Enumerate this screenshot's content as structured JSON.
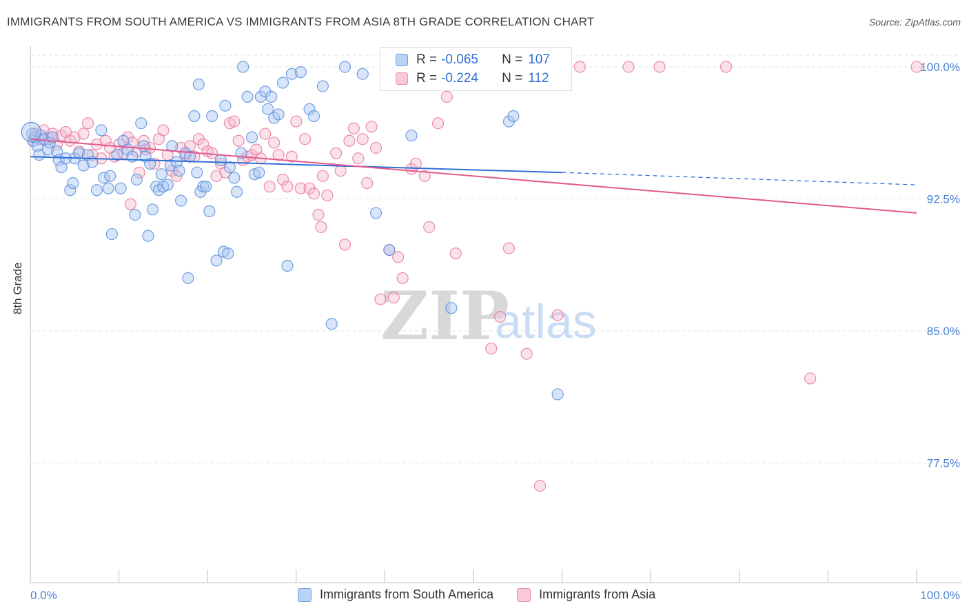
{
  "title": "IMMIGRANTS FROM SOUTH AMERICA VS IMMIGRANTS FROM ASIA 8TH GRADE CORRELATION CHART",
  "source": "Source: ZipAtlas.com",
  "watermark": {
    "zip": "ZIP",
    "atlas": "atlas"
  },
  "colors": {
    "blue": "#5b8fd9",
    "blue_fill": "#a9c6f2",
    "blue_line": "#2f6fd6",
    "pink": "#e87aa0",
    "pink_fill": "#f5bcd0",
    "pink_line": "#e05a8a",
    "axis_text": "#4a7fd4",
    "grid": "#e2e2e2"
  },
  "legend": {
    "south_america": {
      "r_label": "R =",
      "r_value": "-0.065",
      "n_label": "N =",
      "n_value": "107"
    },
    "asia": {
      "r_label": "R =",
      "r_value": "-0.224",
      "n_label": "N =",
      "n_value": "112"
    }
  },
  "chart_data": {
    "type": "scatter",
    "title": "IMMIGRANTS FROM SOUTH AMERICA VS IMMIGRANTS FROM ASIA 8TH GRADE CORRELATION CHART",
    "xlabel": "",
    "ylabel": "8th Grade",
    "xlim": [
      0,
      100
    ],
    "ylim": [
      70.0,
      101.0
    ],
    "x_tick_labels": [
      "0.0%",
      "100.0%"
    ],
    "y_ticks": [
      77.5,
      85.0,
      92.5,
      100.0
    ],
    "y_tick_labels": [
      "77.5%",
      "85.0%",
      "92.5%",
      "100.0%"
    ],
    "grid": true,
    "legend_position": "top-center",
    "series": [
      {
        "name": "Immigrants from South America",
        "color": "#5b8fd9",
        "trend": {
          "x0": 0,
          "y0": 94.9,
          "x1": 60,
          "y1": 94.0,
          "dashed_to_x": 100,
          "dashed_to_y": 93.3
        },
        "points": [
          [
            0.2,
            96.2
          ],
          [
            0.3,
            95.8
          ],
          [
            0.5,
            96.0
          ],
          [
            0.8,
            95.5
          ],
          [
            1.0,
            95.0
          ],
          [
            1.2,
            96.1
          ],
          [
            1.5,
            95.9
          ],
          [
            2.0,
            95.3
          ],
          [
            2.2,
            95.7
          ],
          [
            2.5,
            96.0
          ],
          [
            3.0,
            95.2
          ],
          [
            3.2,
            94.7
          ],
          [
            3.5,
            94.3
          ],
          [
            4.0,
            94.8
          ],
          [
            4.5,
            93.0
          ],
          [
            4.8,
            93.4
          ],
          [
            5.0,
            94.8
          ],
          [
            5.5,
            95.1
          ],
          [
            6.0,
            94.4
          ],
          [
            6.5,
            95.0
          ],
          [
            7.0,
            94.6
          ],
          [
            7.5,
            93.0
          ],
          [
            8.0,
            96.4
          ],
          [
            8.3,
            93.7
          ],
          [
            8.8,
            93.1
          ],
          [
            9.0,
            93.8
          ],
          [
            9.2,
            90.5
          ],
          [
            9.8,
            95.0
          ],
          [
            10.2,
            93.1
          ],
          [
            10.5,
            95.8
          ],
          [
            11.0,
            95.3
          ],
          [
            11.5,
            94.9
          ],
          [
            11.8,
            91.6
          ],
          [
            12.0,
            93.6
          ],
          [
            12.5,
            96.8
          ],
          [
            12.8,
            95.5
          ],
          [
            13.0,
            94.9
          ],
          [
            13.3,
            90.4
          ],
          [
            13.5,
            94.5
          ],
          [
            13.8,
            91.9
          ],
          [
            14.2,
            93.2
          ],
          [
            14.5,
            93.0
          ],
          [
            14.8,
            93.9
          ],
          [
            15.0,
            93.2
          ],
          [
            15.5,
            93.3
          ],
          [
            15.8,
            94.4
          ],
          [
            16.0,
            95.5
          ],
          [
            16.5,
            94.6
          ],
          [
            16.8,
            94.1
          ],
          [
            17.0,
            92.4
          ],
          [
            17.5,
            95.1
          ],
          [
            17.8,
            88.0
          ],
          [
            18.0,
            94.9
          ],
          [
            18.5,
            97.2
          ],
          [
            18.8,
            94.0
          ],
          [
            19.0,
            99.0
          ],
          [
            19.2,
            92.9
          ],
          [
            19.5,
            93.2
          ],
          [
            19.8,
            93.2
          ],
          [
            20.2,
            91.8
          ],
          [
            20.5,
            97.2
          ],
          [
            21.0,
            89.0
          ],
          [
            21.5,
            94.7
          ],
          [
            21.8,
            89.5
          ],
          [
            22.0,
            97.8
          ],
          [
            22.3,
            89.4
          ],
          [
            22.5,
            94.3
          ],
          [
            23.0,
            93.7
          ],
          [
            23.3,
            92.9
          ],
          [
            23.8,
            95.1
          ],
          [
            24.0,
            100.0
          ],
          [
            24.5,
            98.3
          ],
          [
            25.0,
            96.0
          ],
          [
            25.3,
            93.9
          ],
          [
            25.8,
            94.0
          ],
          [
            26.0,
            98.3
          ],
          [
            26.5,
            98.6
          ],
          [
            26.8,
            97.6
          ],
          [
            27.2,
            98.3
          ],
          [
            27.5,
            97.1
          ],
          [
            28.0,
            97.3
          ],
          [
            28.5,
            99.1
          ],
          [
            29.0,
            88.7
          ],
          [
            29.5,
            99.6
          ],
          [
            30.5,
            99.7
          ],
          [
            31.5,
            97.6
          ],
          [
            32.0,
            97.2
          ],
          [
            33.0,
            98.9
          ],
          [
            34.0,
            85.4
          ],
          [
            35.5,
            100.0
          ],
          [
            37.5,
            99.6
          ],
          [
            39.0,
            91.7
          ],
          [
            40.5,
            89.6
          ],
          [
            43.0,
            96.1
          ],
          [
            47.5,
            86.3
          ],
          [
            54.0,
            96.9
          ],
          [
            54.5,
            97.2
          ],
          [
            59.5,
            81.4
          ]
        ],
        "big_points": [
          [
            0.1,
            96.3
          ]
        ]
      },
      {
        "name": "Immigrants from Asia",
        "color": "#e87aa0",
        "trend": {
          "x0": 0,
          "y0": 95.9,
          "x1": 100,
          "y1": 91.7
        },
        "points": [
          [
            0.3,
            95.8
          ],
          [
            0.6,
            96.2
          ],
          [
            1.0,
            95.9
          ],
          [
            1.5,
            96.4
          ],
          [
            2.0,
            96.0
          ],
          [
            2.5,
            96.2
          ],
          [
            3.0,
            95.6
          ],
          [
            3.5,
            96.1
          ],
          [
            4.0,
            96.3
          ],
          [
            4.5,
            95.8
          ],
          [
            5.0,
            96.0
          ],
          [
            5.5,
            95.2
          ],
          [
            6.0,
            96.2
          ],
          [
            6.5,
            96.8
          ],
          [
            7.0,
            95.0
          ],
          [
            7.5,
            95.6
          ],
          [
            8.0,
            94.8
          ],
          [
            8.5,
            95.8
          ],
          [
            9.0,
            95.4
          ],
          [
            9.5,
            94.9
          ],
          [
            10.0,
            95.6
          ],
          [
            10.5,
            95.1
          ],
          [
            11.0,
            96.0
          ],
          [
            11.3,
            92.2
          ],
          [
            11.5,
            95.7
          ],
          [
            12.0,
            95.2
          ],
          [
            12.3,
            94.0
          ],
          [
            12.8,
            95.8
          ],
          [
            13.0,
            95.3
          ],
          [
            13.5,
            95.4
          ],
          [
            14.0,
            94.5
          ],
          [
            14.5,
            95.9
          ],
          [
            15.0,
            96.4
          ],
          [
            15.5,
            95.0
          ],
          [
            16.0,
            94.1
          ],
          [
            16.5,
            93.8
          ],
          [
            17.0,
            95.4
          ],
          [
            17.5,
            95.0
          ],
          [
            18.0,
            95.5
          ],
          [
            18.5,
            94.9
          ],
          [
            19.0,
            95.9
          ],
          [
            19.5,
            95.6
          ],
          [
            20.0,
            95.2
          ],
          [
            20.5,
            95.1
          ],
          [
            21.0,
            93.8
          ],
          [
            21.5,
            94.5
          ],
          [
            22.0,
            94.0
          ],
          [
            22.5,
            96.8
          ],
          [
            23.0,
            96.9
          ],
          [
            23.5,
            95.8
          ],
          [
            24.0,
            94.7
          ],
          [
            24.5,
            94.9
          ],
          [
            25.0,
            95.0
          ],
          [
            25.5,
            95.3
          ],
          [
            26.0,
            94.8
          ],
          [
            26.5,
            96.2
          ],
          [
            27.0,
            93.2
          ],
          [
            27.5,
            95.7
          ],
          [
            28.0,
            95.0
          ],
          [
            28.5,
            93.6
          ],
          [
            29.0,
            93.2
          ],
          [
            29.5,
            94.9
          ],
          [
            30.0,
            96.9
          ],
          [
            30.5,
            93.1
          ],
          [
            31.0,
            95.9
          ],
          [
            31.5,
            93.1
          ],
          [
            32.0,
            92.8
          ],
          [
            32.5,
            91.6
          ],
          [
            32.8,
            90.9
          ],
          [
            33.0,
            93.8
          ],
          [
            33.5,
            92.7
          ],
          [
            34.5,
            95.1
          ],
          [
            35.0,
            94.1
          ],
          [
            35.5,
            89.9
          ],
          [
            36.0,
            95.8
          ],
          [
            36.5,
            96.5
          ],
          [
            37.0,
            94.8
          ],
          [
            37.5,
            95.9
          ],
          [
            38.0,
            93.4
          ],
          [
            38.5,
            96.6
          ],
          [
            39.0,
            95.4
          ],
          [
            39.5,
            86.8
          ],
          [
            40.5,
            89.6
          ],
          [
            41.0,
            86.9
          ],
          [
            41.5,
            89.2
          ],
          [
            42.0,
            88.0
          ],
          [
            43.0,
            94.2
          ],
          [
            43.5,
            94.5
          ],
          [
            44.5,
            93.8
          ],
          [
            45.0,
            90.9
          ],
          [
            46.0,
            96.8
          ],
          [
            47.0,
            98.3
          ],
          [
            48.0,
            89.4
          ],
          [
            52.0,
            84.0
          ],
          [
            53.0,
            85.8
          ],
          [
            54.0,
            89.7
          ],
          [
            56.0,
            83.7
          ],
          [
            57.5,
            76.2
          ],
          [
            59.5,
            85.9
          ],
          [
            62.0,
            100.0
          ],
          [
            67.5,
            100.0
          ],
          [
            71.0,
            100.0
          ],
          [
            78.5,
            100.0
          ],
          [
            88.0,
            82.3
          ],
          [
            100.0,
            100.0
          ]
        ]
      }
    ]
  }
}
